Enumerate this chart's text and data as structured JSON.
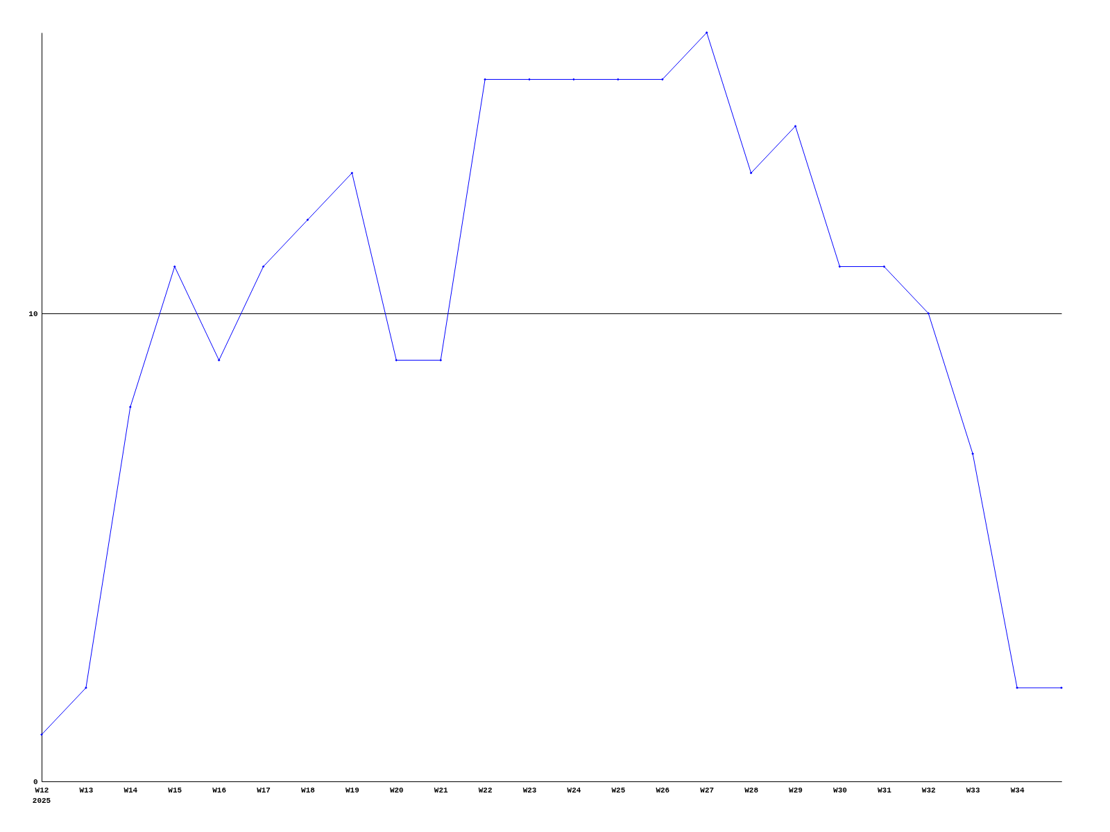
{
  "chart_data": {
    "type": "line",
    "categories": [
      "W12",
      "W13",
      "W14",
      "W15",
      "W16",
      "W17",
      "W18",
      "W19",
      "W20",
      "W21",
      "W22",
      "W23",
      "W24",
      "W25",
      "W26",
      "W27",
      "W28",
      "W29",
      "W30",
      "W31",
      "W32",
      "W33",
      "W34",
      null
    ],
    "series": [
      {
        "color": "#0000ff",
        "values": [
          1,
          2,
          8,
          11,
          9,
          11,
          12,
          13,
          9,
          9,
          15,
          15,
          15,
          15,
          15,
          16,
          13,
          14,
          11,
          11,
          10,
          7,
          2,
          2
        ]
      }
    ],
    "ylim": [
      0,
      16
    ],
    "yticks": [
      0,
      10
    ],
    "grid": "y",
    "marker": "diamond",
    "line_style": "solid",
    "annotations": [
      "2025"
    ]
  }
}
